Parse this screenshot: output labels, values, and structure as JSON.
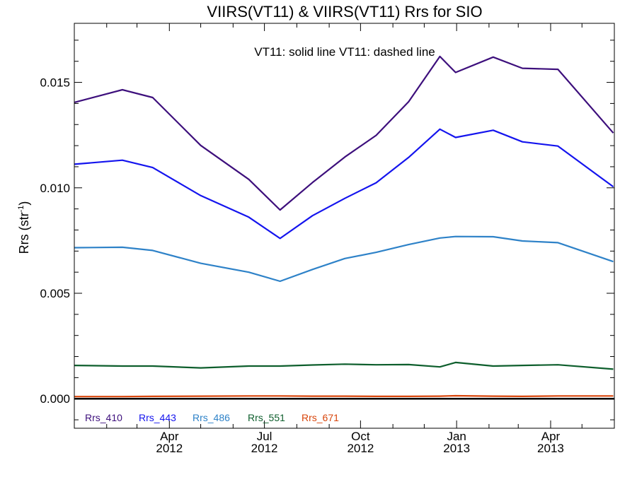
{
  "chart_data": {
    "type": "line",
    "title": "VIIRS(VT11) & VIIRS(VT11)  Rrs for SIO",
    "annotation": "VT11: solid line   VT11: dashed line",
    "ylabel": "Rrs (str",
    "ylabel_sup": "-1",
    "ylim": [
      -0.0014,
      0.0178
    ],
    "xlim": [
      "2012-01-01",
      "2013-06-01"
    ],
    "y_ticks": [
      {
        "value": 0.0,
        "label": "0.000"
      },
      {
        "value": 0.005,
        "label": "0.005"
      },
      {
        "value": 0.01,
        "label": "0.010"
      },
      {
        "value": 0.015,
        "label": "0.015"
      }
    ],
    "x_ticks": [
      {
        "date": "2012-04-01",
        "month": "Apr",
        "year": "2012"
      },
      {
        "date": "2012-07-01",
        "month": "Jul",
        "year": "2012"
      },
      {
        "date": "2012-10-01",
        "month": "Oct",
        "year": "2012"
      },
      {
        "date": "2013-01-01",
        "month": "Jan",
        "year": "2013"
      },
      {
        "date": "2013-04-01",
        "month": "Apr",
        "year": "2013"
      }
    ],
    "x": [
      "2012-01-01",
      "2012-02-16",
      "2012-03-16",
      "2012-05-01",
      "2012-06-16",
      "2012-07-16",
      "2012-08-16",
      "2012-09-16",
      "2012-10-16",
      "2012-11-16",
      "2012-12-16",
      "2012-12-31",
      "2013-02-05",
      "2013-03-05",
      "2013-04-08",
      "2013-05-31"
    ],
    "series": [
      {
        "name": "Rrs_410",
        "color": "#3d0f7c",
        "values": [
          0.01405,
          0.01465,
          0.01428,
          0.01201,
          0.0104,
          0.00895,
          0.01025,
          0.01146,
          0.01249,
          0.01408,
          0.01623,
          0.01547,
          0.0162,
          0.01567,
          0.01562,
          0.0126
        ]
      },
      {
        "name": "Rrs_443",
        "color": "#1414ee",
        "values": [
          0.01112,
          0.01131,
          0.01096,
          0.00963,
          0.00861,
          0.0076,
          0.00868,
          0.0095,
          0.01024,
          0.01144,
          0.01278,
          0.01239,
          0.01273,
          0.01218,
          0.01198,
          0.01005
        ]
      },
      {
        "name": "Rrs_486",
        "color": "#2e82c8",
        "values": [
          0.00716,
          0.00718,
          0.00703,
          0.00642,
          0.006,
          0.00557,
          0.00613,
          0.00665,
          0.00694,
          0.00731,
          0.00762,
          0.00769,
          0.00768,
          0.00748,
          0.0074,
          0.0065
        ]
      },
      {
        "name": "Rrs_551",
        "color": "#0d5e2c",
        "values": [
          0.00158,
          0.00155,
          0.00155,
          0.00146,
          0.00155,
          0.00155,
          0.0016,
          0.00164,
          0.00161,
          0.00162,
          0.00151,
          0.00172,
          0.00155,
          0.00158,
          0.00161,
          0.0014
        ]
      },
      {
        "name": "Rrs_671",
        "color": "#d8450b",
        "values": [
          0.0001,
          0.0001,
          0.00011,
          0.00012,
          0.00013,
          0.00013,
          0.00012,
          0.00012,
          0.00011,
          0.00011,
          0.00012,
          0.00014,
          0.00012,
          0.00011,
          0.00013,
          0.00013
        ]
      }
    ],
    "zero_line": 0.0,
    "grid": false,
    "legend_position": "bottom-left"
  }
}
